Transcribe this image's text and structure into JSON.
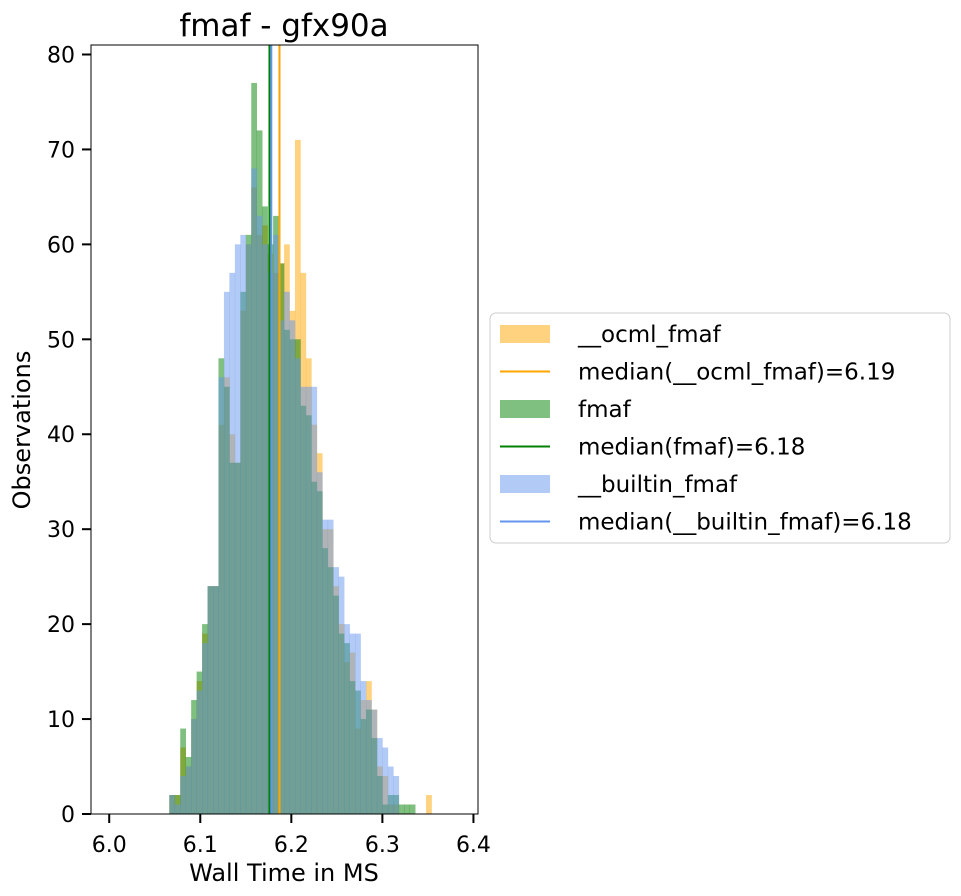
{
  "chart_data": {
    "type": "histogram",
    "title": "fmaf - gfx90a",
    "xlabel": "Wall Time in MS",
    "ylabel": "Observations",
    "xlim": [
      5.98,
      6.405
    ],
    "ylim": [
      0,
      81
    ],
    "xticks": [
      6.0,
      6.1,
      6.2,
      6.3,
      6.4
    ],
    "xtick_labels": [
      "6.0",
      "6.1",
      "6.2",
      "6.3",
      "6.4"
    ],
    "yticks": [
      0,
      10,
      20,
      30,
      40,
      50,
      60,
      70,
      80
    ],
    "ytick_labels": [
      "0",
      "10",
      "20",
      "30",
      "40",
      "50",
      "60",
      "70",
      "80"
    ],
    "legend_position": "center-right outside",
    "series": [
      {
        "name": "__ocml_fmaf",
        "color": "#ffa500",
        "bin_start": 6.0,
        "bin_width": 0.006,
        "values": [
          0,
          0,
          0,
          0,
          0,
          0,
          0,
          0,
          0,
          0,
          0,
          2,
          2,
          7,
          5,
          10,
          14,
          19,
          24,
          24,
          41,
          46,
          40,
          37,
          53,
          60,
          66,
          61,
          62,
          59,
          57,
          58,
          60,
          53,
          71,
          57,
          48,
          41,
          38,
          30,
          30,
          24,
          20,
          16,
          17,
          9,
          12,
          14,
          11,
          5,
          4,
          1,
          1,
          0,
          0,
          0,
          0,
          0,
          2,
          0,
          0,
          0,
          0,
          0,
          0,
          0,
          0,
          0
        ]
      },
      {
        "name": "fmaf",
        "color": "#008000",
        "bin_start": 6.0,
        "bin_width": 0.006,
        "values": [
          0,
          0,
          0,
          0,
          0,
          0,
          0,
          0,
          0,
          0,
          0,
          2,
          2,
          9,
          6,
          12,
          15,
          20,
          24,
          24,
          48,
          45,
          37,
          37,
          55,
          61,
          77,
          72,
          64,
          60,
          63,
          58,
          51,
          50,
          50,
          43,
          42,
          35,
          34,
          28,
          26,
          23,
          19,
          18,
          14,
          13,
          10,
          11,
          8,
          4,
          1,
          2,
          2,
          1,
          1,
          1,
          0,
          0,
          0,
          0,
          0,
          0,
          0,
          0,
          0,
          0,
          0,
          0
        ]
      },
      {
        "name": "__builtin_fmaf",
        "color": "#6495ed",
        "bin_start": 6.0,
        "bin_width": 0.006,
        "values": [
          0,
          0,
          0,
          0,
          0,
          0,
          0,
          0,
          0,
          0,
          0,
          2,
          1,
          4,
          5,
          10,
          13,
          18,
          24,
          24,
          46,
          55,
          57,
          60,
          61,
          60,
          68,
          63,
          60,
          57,
          61,
          52,
          55,
          52,
          48,
          45,
          45,
          45,
          36,
          31,
          31,
          26,
          25,
          20,
          19,
          19,
          14,
          12,
          11,
          8,
          7,
          5,
          4,
          0,
          0,
          0,
          0,
          0,
          0,
          0,
          0,
          0,
          0,
          0,
          0,
          0,
          0,
          0
        ]
      }
    ],
    "medians": [
      {
        "label": "median(__ocml_fmaf)=6.19",
        "value": 6.187,
        "color": "#ffa500"
      },
      {
        "label": "median(fmaf)=6.18",
        "value": 6.176,
        "color": "#008000"
      },
      {
        "label": "median(__builtin_fmaf)=6.18",
        "value": 6.178,
        "color": "#6495ed"
      }
    ],
    "legend": [
      {
        "kind": "patch",
        "label": "__ocml_fmaf",
        "color": "#ffa500"
      },
      {
        "kind": "line",
        "label": "median(__ocml_fmaf)=6.19",
        "color": "#ffa500"
      },
      {
        "kind": "patch",
        "label": "fmaf",
        "color": "#008000"
      },
      {
        "kind": "line",
        "label": "median(fmaf)=6.18",
        "color": "#008000"
      },
      {
        "kind": "patch",
        "label": "__builtin_fmaf",
        "color": "#6495ed"
      },
      {
        "kind": "line",
        "label": "median(__builtin_fmaf)=6.18",
        "color": "#6495ed"
      }
    ]
  }
}
